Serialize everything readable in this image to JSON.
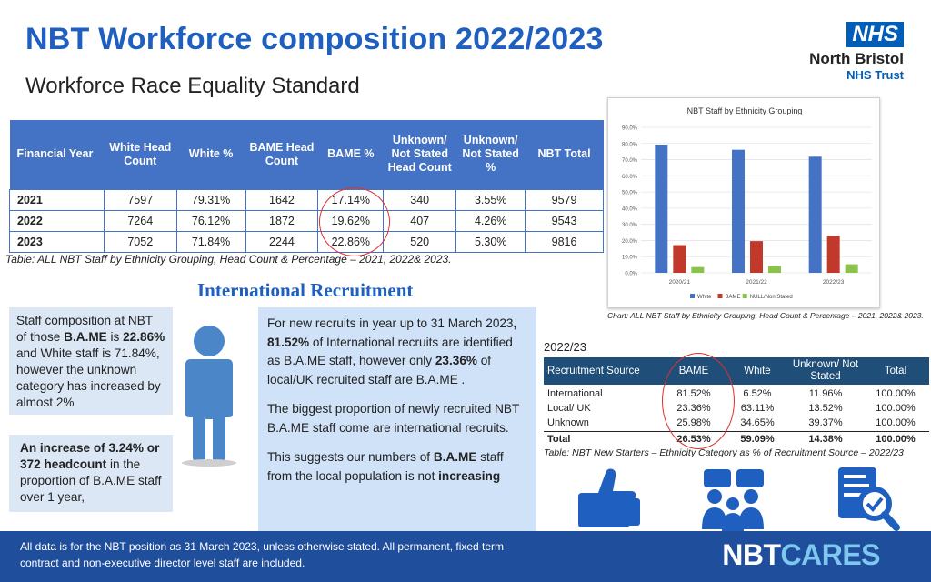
{
  "header": {
    "title": "NBT Workforce composition 2022/2023",
    "subtitle": "Workforce Race Equality Standard",
    "logo_badge": "NHS",
    "logo_org": "North Bristol",
    "logo_trust": "NHS Trust"
  },
  "main_table": {
    "columns": [
      "Financial Year",
      "White Head Count",
      "White %",
      "BAME Head Count",
      "BAME %",
      "Unknown/ Not Stated Head Count",
      "Unknown/ Not Stated %",
      "NBT Total"
    ],
    "rows": [
      [
        "2021",
        "7597",
        "79.31%",
        "1642",
        "17.14%",
        "340",
        "3.55%",
        "9579"
      ],
      [
        "2022",
        "7264",
        "76.12%",
        "1872",
        "19.62%",
        "407",
        "4.26%",
        "9543"
      ],
      [
        "2023",
        "7052",
        "71.84%",
        "2244",
        "22.86%",
        "520",
        "5.30%",
        "9816"
      ]
    ],
    "caption": "Table: ALL NBT Staff by Ethnicity Grouping, Head Count & Percentage – 2021, 2022& 2023."
  },
  "chart_data": {
    "type": "bar",
    "title": "NBT Staff by Ethnicity Grouping",
    "categories": [
      "2020/21",
      "2021/22",
      "2022/23"
    ],
    "series": [
      {
        "name": "White",
        "color": "#4472c4",
        "values": [
          79.31,
          76.12,
          71.84
        ]
      },
      {
        "name": "BAME",
        "color": "#c0392b",
        "values": [
          17.14,
          19.62,
          22.86
        ]
      },
      {
        "name": "NULL/Non Stated",
        "color": "#8bc34a",
        "values": [
          3.55,
          4.26,
          5.3
        ]
      }
    ],
    "ylim": [
      0,
      90
    ],
    "yticks": [
      "0.0%",
      "10.0%",
      "20.0%",
      "30.0%",
      "40.0%",
      "50.0%",
      "60.0%",
      "70.0%",
      "80.0%",
      "90.0%"
    ],
    "grid": true,
    "legend": "bottom",
    "caption": "Chart: ALL NBT Staff by Ethnicity Grouping, Head Count & Percentage – 2021, 2022& 2023."
  },
  "section": {
    "title": "International Recruitment"
  },
  "left_box1": {
    "text1": "Staff composition at NBT of those ",
    "bold1": "B.A.ME",
    "text2": " is ",
    "bold2": "22.86%",
    "text3": " and White staff is 71.84%, however the unknown category has increased by almost 2%"
  },
  "left_box2": {
    "bold1": "An increase of 3.24% or 372 headcount",
    "text1": " in the proportion of B.A.ME staff over 1 year,"
  },
  "mid_box": {
    "p1_a": "For new recruits in year up to 31 March 2023",
    "p1_b": ", 81.52%",
    "p1_c": " of International recruits are identified as B.A.ME staff, however only ",
    "p1_d": "23.36%",
    "p1_e": " of  local/UK recruited staff are B.A.ME .",
    "p2": "The biggest proportion of newly recruited NBT B.A.ME staff come are international recruits.",
    "p3_a": "This suggests our numbers of ",
    "p3_b": "B.A.ME",
    "p3_c": " staff from the local population is not ",
    "p3_d": "increasing"
  },
  "recruit_table": {
    "year": "2022/23",
    "columns": [
      "Recruitment Source",
      "BAME",
      "White",
      "Unknown/ Not Stated",
      "Total"
    ],
    "rows": [
      [
        "International",
        "81.52%",
        "6.52%",
        "11.96%",
        "100.00%"
      ],
      [
        "Local/ UK",
        "23.36%",
        "63.11%",
        "13.52%",
        "100.00%"
      ],
      [
        "Unknown",
        "25.98%",
        "34.65%",
        "39.37%",
        "100.00%"
      ]
    ],
    "total": [
      "Total",
      "26.53%",
      "59.09%",
      "14.38%",
      "100.00%"
    ],
    "caption": "Table: NBT New Starters – Ethnicity Category as % of Recruitment Source – 2022/23"
  },
  "icons": [
    "thumbs-up-icon",
    "team-meeting-icon",
    "checklist-magnifier-icon",
    "person-silhouette-icon"
  ],
  "footer": {
    "text": "All data is for the NBT position as 31 March 2023, unless otherwise stated. All permanent, fixed term contract and non-executive director level staff are included.",
    "brand_a": "NBT",
    "brand_b": "CARES"
  },
  "colors": {
    "title_blue": "#1f5fbf",
    "table_header": "#4472c4",
    "footer_bg": "#1f4e9c",
    "highlight": "#e03030"
  }
}
